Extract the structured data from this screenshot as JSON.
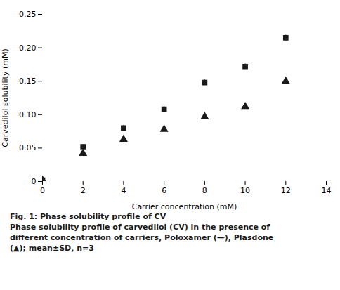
{
  "chart_data": {
    "type": "scatter",
    "title": "Fig. 1: Phase solubility profile of CV",
    "caption": [
      "Phase solubility profile of carvedilol (CV) in the presence of",
      "different concentration of carriers, Poloxamer (—), Plasdone",
      "(▲); mean±SD, n=3"
    ],
    "xlabel": "Carrier concentration (mM)",
    "ylabel": "Carvedilol solubility (mM)",
    "x": [
      0,
      2,
      4,
      6,
      8,
      10,
      12
    ],
    "series": [
      {
        "color": "#1a1a1a",
        "marker": "square",
        "values": [
          0.002,
          0.052,
          0.08,
          0.108,
          0.148,
          0.172,
          0.215
        ],
        "yerr": [
          0.002,
          0.003,
          0.004,
          0.004,
          0.004,
          0.004,
          0.004
        ]
      },
      {
        "color": "#1a1a1a",
        "marker": "triangle",
        "values": [
          0.002,
          0.042,
          0.063,
          0.078,
          0.097,
          0.112,
          0.15
        ],
        "yerr": [
          0.001,
          0.003,
          0.003,
          0.003,
          0.003,
          0.003,
          0.003
        ]
      }
    ],
    "xlim": [
      0,
      14
    ],
    "ylim": [
      0,
      0.25
    ],
    "xticks": [
      0,
      2,
      4,
      6,
      8,
      10,
      12,
      14
    ],
    "yticks": [
      0,
      0.05,
      {
        "value": 0.1,
        "label": "0.10"
      },
      0.15,
      {
        "value": 0.2,
        "label": "0.20"
      },
      0.25
    ],
    "grid": false
  }
}
